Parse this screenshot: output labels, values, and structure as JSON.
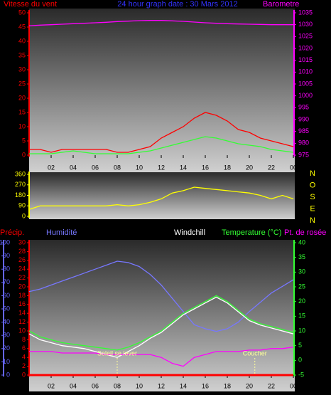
{
  "chart_data": [
    {
      "type": "line",
      "title": "24 hour graph date : 30 Mars 2012",
      "x": [
        0,
        1,
        2,
        3,
        4,
        5,
        6,
        7,
        8,
        9,
        10,
        11,
        12,
        13,
        14,
        15,
        16,
        17,
        18,
        19,
        20,
        21,
        22,
        23,
        24
      ],
      "xlim": [
        0,
        24
      ],
      "xticks": [
        {
          "value": 2,
          "label": "02"
        },
        {
          "value": 4,
          "label": "04"
        },
        {
          "value": 6,
          "label": "06"
        },
        {
          "value": 8,
          "label": "08"
        },
        10,
        12,
        14,
        16,
        18,
        20,
        22,
        {
          "value": 24,
          "label": "00"
        }
      ],
      "ylim": [
        0,
        50
      ],
      "yticks": [
        0,
        5,
        10,
        15,
        20,
        25,
        30,
        35,
        40,
        45,
        50
      ],
      "y2lim": [
        975,
        1035
      ],
      "y2ticks": [
        975,
        980,
        985,
        990,
        995,
        1000,
        1005,
        1010,
        1015,
        1020,
        1025,
        1030,
        1035
      ],
      "axis_colors": {
        "y": "#ff0000",
        "y2": "#ff00ff"
      },
      "series": [
        {
          "name": "Vitesse du vent",
          "color": "#ff0000",
          "values": [
            2,
            2,
            1,
            2,
            2,
            2,
            2,
            2,
            1,
            1,
            2,
            3,
            6,
            8,
            10,
            13,
            15,
            14,
            12,
            9,
            8,
            6,
            5,
            4,
            3
          ]
        },
        {
          "color": "#33ff33",
          "values": [
            0.5,
            0.5,
            0.5,
            1,
            1.5,
            1,
            0.5,
            0.5,
            0.5,
            0.5,
            1,
            1.5,
            2.5,
            3.5,
            4.5,
            5.5,
            6.5,
            6,
            5,
            4,
            3.5,
            3,
            2,
            1.5,
            1
          ]
        },
        {
          "name": "Barometre",
          "color": "#ff00ff",
          "axis": "y2",
          "values": [
            1029.5,
            1029.8,
            1030,
            1030.2,
            1030.4,
            1030.6,
            1030.8,
            1031,
            1031.3,
            1031.5,
            1031.7,
            1031.8,
            1031.8,
            1031.6,
            1031.4,
            1031.1,
            1030.8,
            1030.6,
            1030.4,
            1030.3,
            1030.2,
            1030.1,
            1030,
            1030,
            1030
          ]
        }
      ]
    },
    {
      "type": "line",
      "x": [
        0,
        1,
        2,
        3,
        4,
        5,
        6,
        7,
        8,
        9,
        10,
        11,
        12,
        13,
        14,
        15,
        16,
        17,
        18,
        19,
        20,
        21,
        22,
        23,
        24
      ],
      "xlim": [
        0,
        24
      ],
      "ylim": [
        0,
        360
      ],
      "yticks": [
        0,
        90,
        180,
        270,
        360
      ],
      "axis_colors": {
        "y": "#ffff00"
      },
      "compass_labels": [
        "N",
        "O",
        "S",
        "E",
        "N"
      ],
      "series": [
        {
          "color": "#ffff00",
          "values": [
            60,
            90,
            90,
            90,
            90,
            90,
            90,
            90,
            100,
            90,
            100,
            120,
            150,
            200,
            220,
            250,
            240,
            230,
            220,
            210,
            200,
            180,
            150,
            180,
            150
          ]
        }
      ]
    },
    {
      "type": "line",
      "x": [
        0,
        1,
        2,
        3,
        4,
        5,
        6,
        7,
        8,
        9,
        10,
        11,
        12,
        13,
        14,
        15,
        16,
        17,
        18,
        19,
        20,
        21,
        22,
        23,
        24
      ],
      "xlim": [
        0,
        24
      ],
      "xticks": [
        {
          "value": 2,
          "label": "02"
        },
        {
          "value": 4,
          "label": "04"
        },
        {
          "value": 6,
          "label": "06"
        },
        {
          "value": 8,
          "label": "08"
        },
        10,
        12,
        14,
        16,
        18,
        20,
        22,
        {
          "value": 24,
          "label": "00"
        }
      ],
      "ylim": [
        0,
        100
      ],
      "yticks": [
        0,
        10,
        20,
        30,
        40,
        50,
        60,
        70,
        80,
        90,
        100
      ],
      "y2lim": [
        -5,
        40
      ],
      "y2ticks": [
        -5,
        0,
        5,
        10,
        15,
        20,
        25,
        30,
        35,
        40
      ],
      "y3lim": [
        0,
        30
      ],
      "y3ticks": [
        0,
        2,
        4,
        6,
        8,
        10,
        12,
        14,
        16,
        18,
        20,
        22,
        24,
        26,
        28,
        30
      ],
      "axis_colors": {
        "y": "#6666ff",
        "y2": "#33ff33",
        "y3": "#ff0000"
      },
      "annotations": [
        {
          "text": "Soleil se lever",
          "x": 8
        },
        {
          "text": "Coucher",
          "x": 20.5
        }
      ],
      "series": [
        {
          "name": "Précip.",
          "color": "#ff0000",
          "axis": "y3",
          "values": [
            0,
            0,
            0,
            0,
            0,
            0,
            0,
            0,
            0,
            0,
            0,
            0,
            0,
            0,
            0,
            0,
            0,
            0,
            0,
            0,
            0,
            0,
            0,
            0,
            0
          ]
        },
        {
          "name": "Humidité",
          "color": "#7777ff",
          "values": [
            63,
            65,
            68,
            71,
            74,
            77,
            80,
            83,
            86,
            85,
            82,
            76,
            68,
            58,
            48,
            38,
            35,
            33,
            35,
            40,
            48,
            55,
            62,
            67,
            72
          ]
        },
        {
          "name": "Windchill",
          "color": "#ffffff",
          "axis": "y2",
          "values": [
            9,
            7,
            6,
            5,
            4.5,
            4,
            3,
            2,
            1,
            3,
            5,
            7.5,
            9.5,
            12.5,
            15.5,
            17.5,
            19.5,
            21.5,
            19.5,
            16.5,
            13.5,
            12,
            11,
            10,
            9
          ]
        },
        {
          "name": "Temperature (°C)",
          "color": "#33ff33",
          "axis": "y2",
          "values": [
            10,
            8,
            7,
            6,
            5.5,
            5,
            4.5,
            4,
            3.5,
            4.5,
            6,
            8,
            10,
            13,
            16,
            18,
            20,
            22,
            20,
            17,
            14,
            12.5,
            11.5,
            10.5,
            9.5
          ]
        },
        {
          "name": "Pt. de rosée",
          "color": "#ff00ff",
          "axis": "y2",
          "values": [
            3,
            3,
            3,
            2.5,
            2.5,
            2.5,
            2.5,
            2,
            2,
            2,
            2,
            2,
            1,
            -1,
            -2,
            1,
            2,
            3,
            3,
            3,
            3.5,
            3.5,
            4,
            4,
            4.5
          ]
        }
      ]
    }
  ]
}
